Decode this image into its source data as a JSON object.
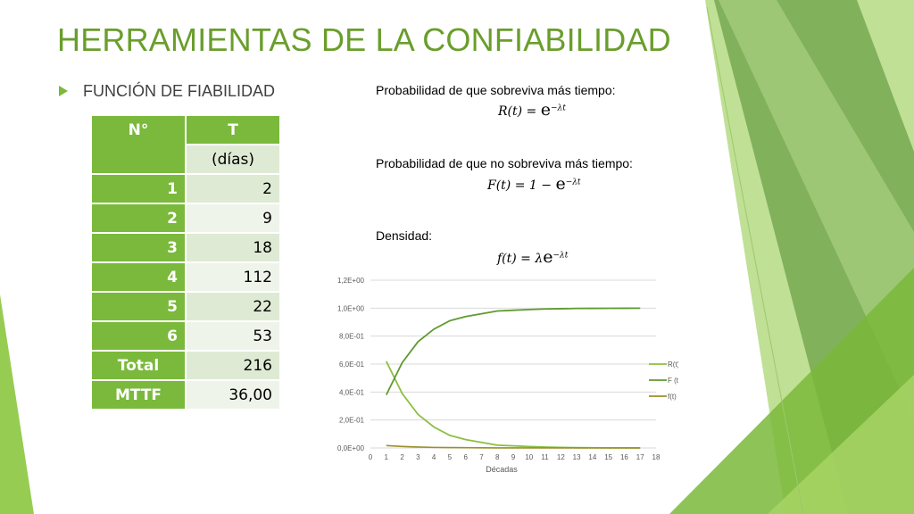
{
  "slide": {
    "title": "HERRAMIENTAS DE LA CONFIABILIDAD",
    "bullet": "FUNCIÓN DE FIABILIDAD"
  },
  "table": {
    "header_n": "N°",
    "header_t": "T",
    "unit": "(días)",
    "rows": [
      {
        "n": "1",
        "t": "2"
      },
      {
        "n": "2",
        "t": "9"
      },
      {
        "n": "3",
        "t": "18"
      },
      {
        "n": "4",
        "t": "112"
      },
      {
        "n": "5",
        "t": "22"
      },
      {
        "n": "6",
        "t": "53"
      }
    ],
    "total_label": "Total",
    "total_value": "216",
    "mttf_label": "MTTF",
    "mttf_value": "36,00"
  },
  "formulas": [
    {
      "title": "Probabilidad de que sobreviva más tiempo:",
      "lhs": "R(t) = ",
      "exp": "−λt"
    },
    {
      "title": "Probabilidad de que no sobreviva más tiempo:",
      "lhs": "F(t) = 1 − ",
      "exp": "−λt"
    },
    {
      "title": "Densidad:",
      "lhs": "f(t) = λ",
      "exp": "−λt"
    }
  ],
  "colors": {
    "accent": "#7ab93b",
    "title": "#6a9e2c",
    "r_series": "#8cbf3f",
    "f_series": "#5f9a2e",
    "density_series": "#9a8f2a"
  },
  "chart_data": {
    "type": "line",
    "xlabel": "Décadas",
    "ylabel": "",
    "xlim": [
      0,
      18
    ],
    "ylim": [
      0,
      1.2
    ],
    "x_ticks": [
      "0",
      "1",
      "2",
      "3",
      "4",
      "5",
      "6",
      "7",
      "8",
      "9",
      "10",
      "11",
      "12",
      "13",
      "14",
      "15",
      "16",
      "17",
      "18"
    ],
    "y_ticks": [
      "0,0E+00",
      "2,0E-01",
      "4,0E-01",
      "6,0E-01",
      "8,0E-01",
      "1,0E+00",
      "1,2E+00"
    ],
    "x": [
      1,
      2,
      3,
      4,
      5,
      6,
      7,
      8,
      9,
      10,
      11,
      12,
      13,
      14,
      15,
      16,
      17
    ],
    "series": [
      {
        "name": "R(t)",
        "values": [
          0.62,
          0.39,
          0.24,
          0.15,
          0.09,
          0.06,
          0.04,
          0.02,
          0.015,
          0.01,
          0.006,
          0.004,
          0.002,
          0.0015,
          0.001,
          0.0006,
          0.0004
        ]
      },
      {
        "name": "F (t)",
        "values": [
          0.38,
          0.61,
          0.76,
          0.85,
          0.91,
          0.94,
          0.96,
          0.98,
          0.985,
          0.99,
          0.994,
          0.996,
          0.998,
          0.9985,
          0.999,
          0.9994,
          0.9996
        ]
      },
      {
        "name": "f(t)",
        "values": [
          0.017,
          0.011,
          0.007,
          0.004,
          0.003,
          0.002,
          0.001,
          0.0006,
          0.0004,
          0.0003,
          0.0002,
          0.0001,
          0.0001,
          0.0,
          0.0,
          0.0,
          0.0
        ]
      }
    ],
    "legend_position": "right",
    "grid": true
  }
}
